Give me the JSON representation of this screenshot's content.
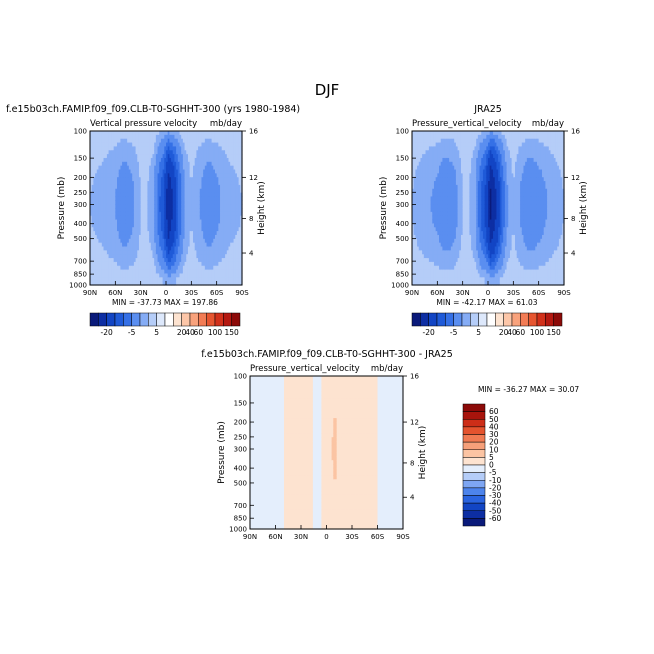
{
  "page_title": "DJF",
  "colors": {
    "levels": [
      "#0a1a7a",
      "#0d2ea3",
      "#1245c4",
      "#1f5ad8",
      "#3570e6",
      "#5a8ef0",
      "#85acf5",
      "#b5cdf8",
      "#dde8fb",
      "#ffffff",
      "#fde3d0",
      "#fcc6a8",
      "#f8a27c",
      "#f27c55",
      "#e65530",
      "#d1301a",
      "#b41810",
      "#8c0a08"
    ]
  },
  "chart_data": [
    {
      "type": "heatmap",
      "case_title": "f.e15b03ch.FAMIP.f09_f09.CLB-T0-SGHHT-300 (yrs 1980-1984)",
      "variable": "Vertical pressure velocity",
      "units": "mb/day",
      "ylabel": "Pressure (mb)",
      "ylabel_right": "Height (km)",
      "x_ticks": [
        "90N",
        "60N",
        "30N",
        "0",
        "30S",
        "60S",
        "90S"
      ],
      "y_ticks": [
        "100",
        "150",
        "200",
        "250",
        "300",
        "400",
        "500",
        "700",
        "850",
        "1000"
      ],
      "y_ticks_right": [
        "16",
        "12",
        "8",
        "4"
      ],
      "stats": "MIN =  -37.73   MAX =  197.86",
      "colorbar_labels": [
        "-20",
        "-5",
        "5",
        "20",
        "40",
        "60",
        "100",
        "150"
      ],
      "field": {
        "lat": [
          -90,
          -75,
          -60,
          -50,
          -40,
          -30,
          -22,
          -15,
          -8,
          -3,
          0,
          3,
          8,
          15,
          22,
          30,
          40,
          50,
          60,
          75,
          90
        ],
        "values": [
          -2,
          -3,
          -6,
          -8,
          -5,
          -2,
          -5,
          -15,
          -30,
          -38,
          -28,
          -20,
          -14,
          -4,
          -2,
          -2,
          -6,
          -8,
          -5,
          -3,
          -2
        ]
      }
    },
    {
      "type": "heatmap",
      "case_title": "JRA25",
      "variable": "Pressure_vertical_velocity",
      "units": "mb/day",
      "ylabel": "Pressure (mb)",
      "ylabel_right": "Height (km)",
      "x_ticks": [
        "90N",
        "60N",
        "30N",
        "0",
        "30S",
        "60S",
        "90S"
      ],
      "y_ticks": [
        "100",
        "150",
        "200",
        "250",
        "300",
        "400",
        "500",
        "700",
        "850",
        "1000"
      ],
      "y_ticks_right": [
        "16",
        "12",
        "8",
        "4"
      ],
      "stats": "MIN =  -42.17   MAX =  61.03",
      "colorbar_labels": [
        "-20",
        "-5",
        "5",
        "20",
        "40",
        "60",
        "100",
        "150"
      ],
      "field": {
        "lat": [
          -90,
          -75,
          -60,
          -50,
          -40,
          -30,
          -22,
          -15,
          -8,
          -3,
          0,
          3,
          8,
          15,
          22,
          30,
          40,
          50,
          60,
          75,
          90
        ],
        "values": [
          -2,
          -4,
          -7,
          -9,
          -6,
          -2,
          -6,
          -18,
          -34,
          -42,
          -30,
          -22,
          -16,
          -5,
          -2,
          -2,
          -7,
          -9,
          -6,
          -4,
          -2
        ]
      }
    },
    {
      "type": "heatmap",
      "case_title": "f.e15b03ch.FAMIP.f09_f09.CLB-T0-SGHHT-300 - JRA25",
      "variable": "Pressure_vertical_velocity",
      "units": "mb/day",
      "ylabel": "Pressure (mb)",
      "ylabel_right": "Height (km)",
      "x_ticks": [
        "90N",
        "60N",
        "30N",
        "0",
        "30S",
        "60S",
        "90S"
      ],
      "y_ticks": [
        "100",
        "150",
        "200",
        "250",
        "300",
        "400",
        "500",
        "700",
        "850",
        "1000"
      ],
      "y_ticks_right": [
        "16",
        "12",
        "8",
        "4"
      ],
      "stats": "MIN =  -36.27   MAX =   30.07",
      "colorbar_labels": [
        "60",
        "50",
        "40",
        "30",
        "20",
        "10",
        "5",
        "0",
        "-5",
        "-10",
        "-20",
        "-30",
        "-40",
        "-50",
        "-60"
      ],
      "field": {
        "lat": [
          -90,
          -75,
          -60,
          -45,
          -30,
          -20,
          -10,
          0,
          10,
          20,
          30,
          45,
          60,
          75,
          90
        ],
        "values": [
          -3,
          -2,
          0,
          3,
          4,
          2,
          6,
          3,
          -2,
          2,
          3,
          1,
          -2,
          -5,
          -3
        ]
      }
    }
  ]
}
